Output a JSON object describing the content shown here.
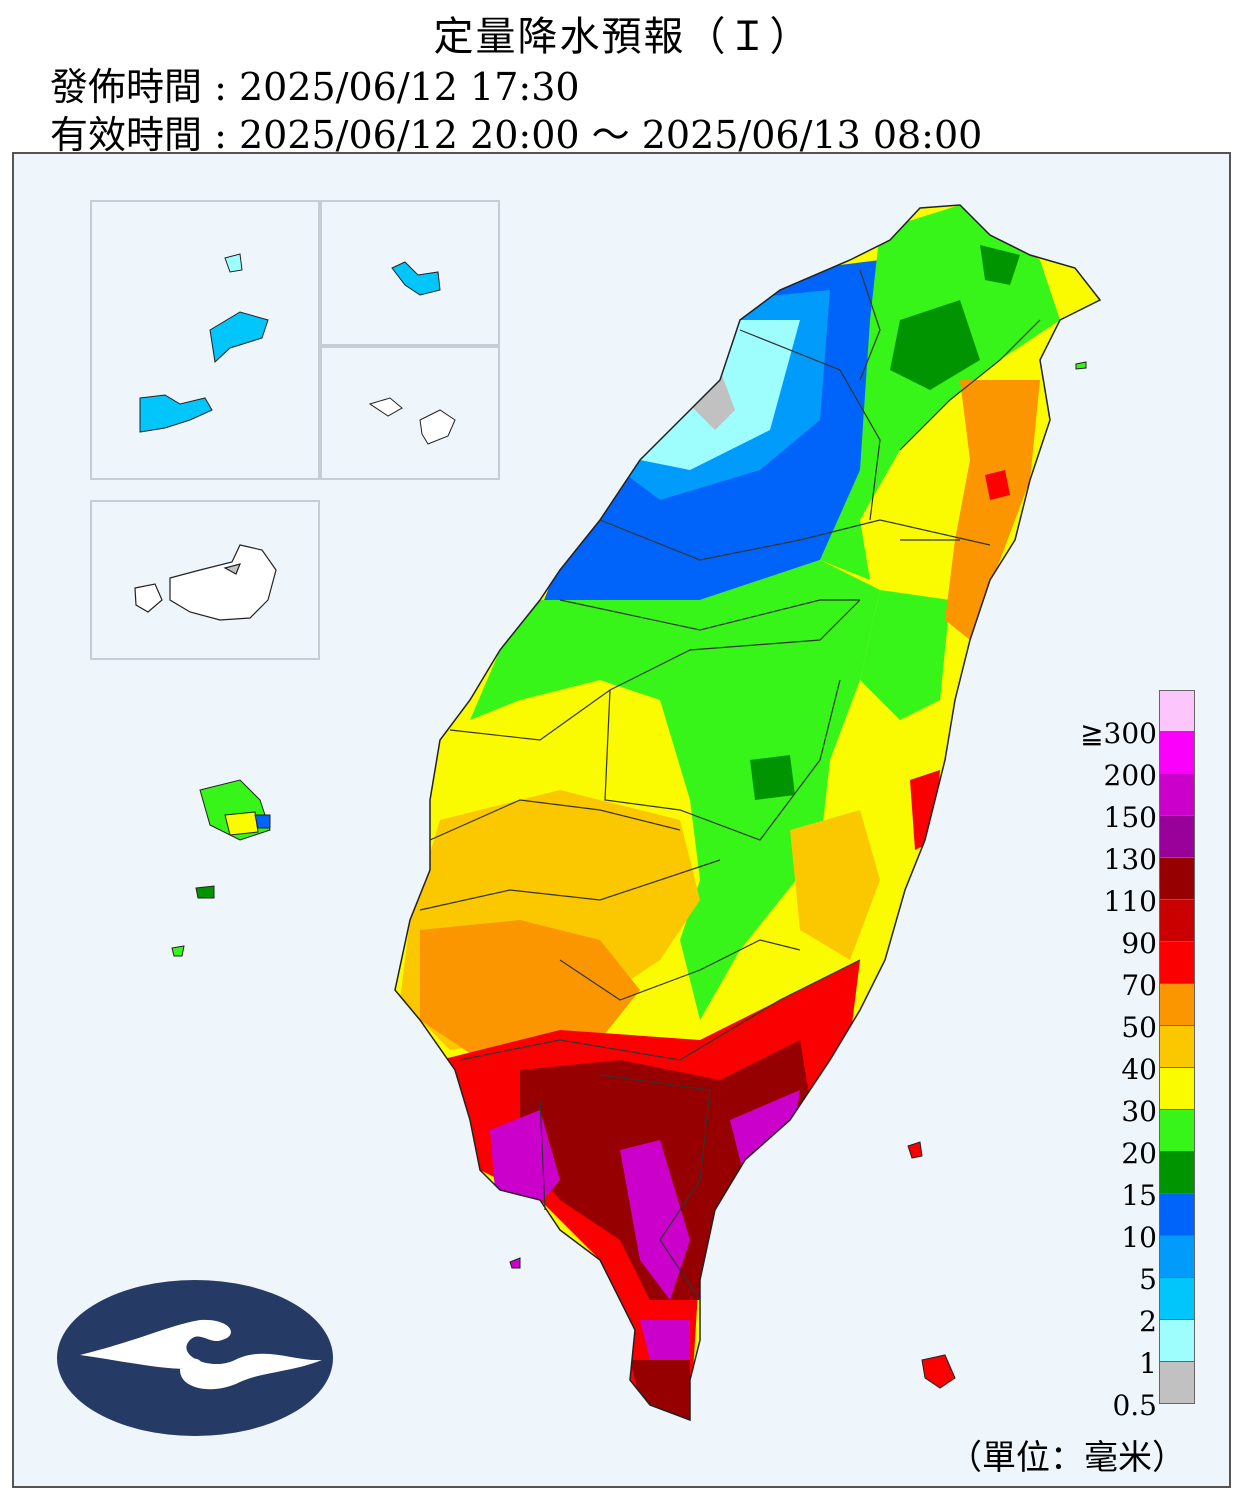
{
  "header": {
    "title": "定量降水預報（Ｉ）",
    "issue_time": "發佈時間 : 2025/06/12 17:30",
    "valid_time": "有效時間 : 2025/06/12 20:00 ～ 2025/06/13 08:00"
  },
  "legend": {
    "unit_label": "（單位：毫米）",
    "labels": [
      "≧300",
      "200",
      "150",
      "130",
      "110",
      "90",
      "70",
      "50",
      "40",
      "30",
      "20",
      "15",
      "10",
      "5",
      "2",
      "1",
      "0.5"
    ],
    "colors_top_to_bottom": [
      "#fcc6fc",
      "#fb00fb",
      "#cb00cb",
      "#9a009a",
      "#960000",
      "#ca0000",
      "#fb0000",
      "#fb9600",
      "#fbc800",
      "#fbfb00",
      "#37f518",
      "#009500",
      "#0064fb",
      "#009bfb",
      "#00c6fb",
      "#9efdfd",
      "#c1c1c1"
    ]
  },
  "map": {
    "background_color": "#eef6fc",
    "border_color": "#555555",
    "logo": "cwa-logo"
  }
}
